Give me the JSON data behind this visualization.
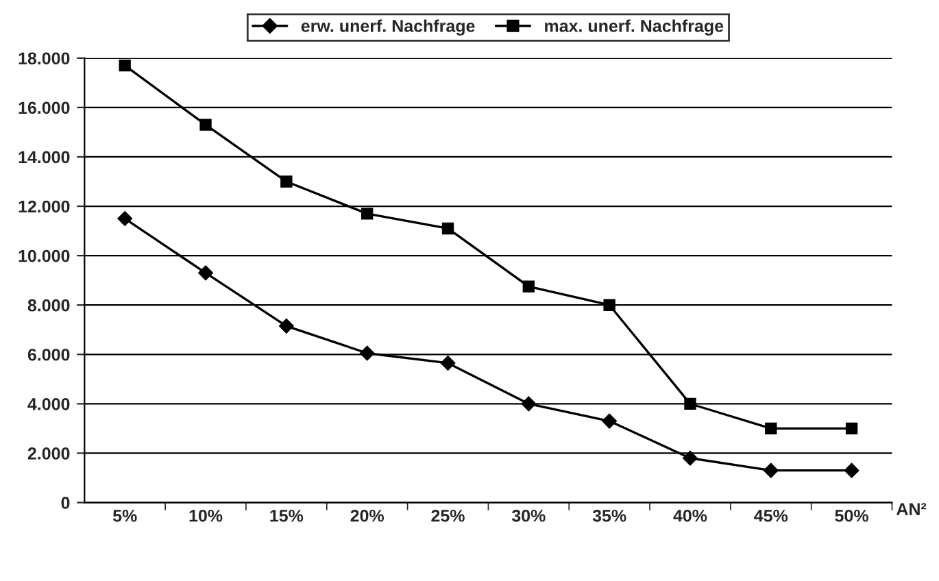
{
  "chart_data": {
    "type": "line",
    "xlabel": "AN²",
    "categories": [
      "5%",
      "10%",
      "15%",
      "20%",
      "25%",
      "30%",
      "35%",
      "40%",
      "45%",
      "50%"
    ],
    "series": [
      {
        "name": "erw. unerf. Nachfrage",
        "color": "#000000",
        "marker": "diamond",
        "values": [
          11500,
          9300,
          7150,
          6050,
          5650,
          4000,
          3300,
          1800,
          1300,
          1300
        ]
      },
      {
        "name": "max. unerf. Nachfrage",
        "color": "#000000",
        "marker": "square",
        "values": [
          17700,
          15300,
          13000,
          11700,
          11100,
          8750,
          8000,
          4000,
          3000,
          3000
        ]
      }
    ],
    "ylim": [
      0,
      18000
    ],
    "yticks": [
      {
        "value": 0,
        "label": "0"
      },
      {
        "value": 2000,
        "label": "2.000"
      },
      {
        "value": 4000,
        "label": "4.000"
      },
      {
        "value": 6000,
        "label": "6.000"
      },
      {
        "value": 8000,
        "label": "8.000"
      },
      {
        "value": 10000,
        "label": "10.000"
      },
      {
        "value": 12000,
        "label": "12.000"
      },
      {
        "value": 14000,
        "label": "14.000"
      },
      {
        "value": 16000,
        "label": "16.000"
      },
      {
        "value": 18000,
        "label": "18.000"
      }
    ],
    "grid": "y",
    "legend": "top",
    "line_style": "solid"
  }
}
